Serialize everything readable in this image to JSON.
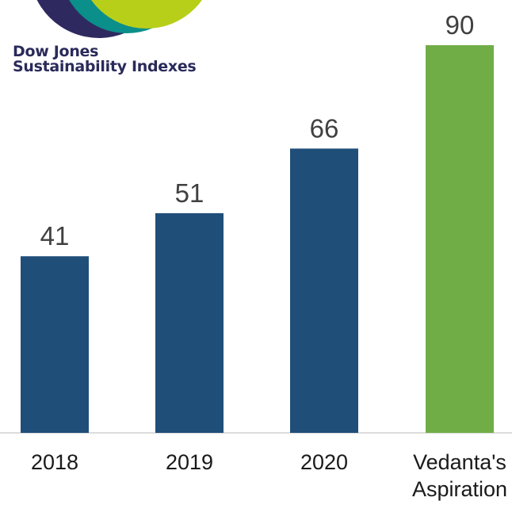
{
  "logo": {
    "line1": "Dow Jones",
    "line2": "Sustainability Indexes",
    "colors": {
      "navy": "#2e2a60",
      "teal": "#0a8f8a",
      "lime": "#b8cf1a"
    }
  },
  "chart_data": {
    "type": "bar",
    "categories": [
      "2018",
      "2019",
      "2020",
      "Vedanta's Aspiration"
    ],
    "values": [
      41,
      51,
      66,
      90
    ],
    "colors": [
      "#1f4e79",
      "#1f4e79",
      "#1f4e79",
      "#70ad47"
    ],
    "title": "",
    "xlabel": "",
    "ylabel": "",
    "ylim": [
      0,
      90
    ],
    "grid": false,
    "legend": "none"
  }
}
